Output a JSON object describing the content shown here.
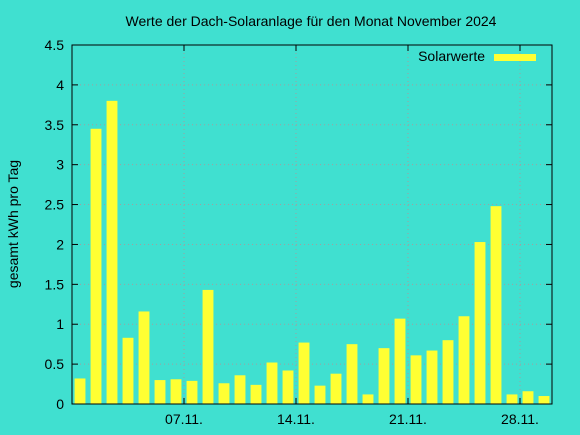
{
  "chart_data": {
    "type": "bar",
    "title": "Werte der Dach-Solaranlage für den Monat November 2024",
    "xlabel": "",
    "ylabel": "gesamt kWh pro Tag",
    "ylim": [
      0,
      4.5
    ],
    "yticks": [
      "0",
      "0.5",
      "1",
      "1.5",
      "2",
      "2.5",
      "3",
      "3.5",
      "4",
      "4.5"
    ],
    "xlim": [
      0,
      30
    ],
    "xticks": [
      {
        "day": 7,
        "label": "07.11."
      },
      {
        "day": 14,
        "label": "14.11."
      },
      {
        "day": 21,
        "label": "21.11."
      },
      {
        "day": 28,
        "label": "28.11."
      }
    ],
    "grid": true,
    "legend_position": "top-right",
    "colors": {
      "background": "#40e0d0",
      "bar": "#ffff33",
      "grid": "#a0a0a0"
    },
    "series": [
      {
        "name": "Solarwerte",
        "x": [
          1,
          2,
          3,
          4,
          5,
          6,
          7,
          8,
          9,
          10,
          11,
          12,
          13,
          14,
          15,
          16,
          17,
          18,
          19,
          20,
          21,
          22,
          23,
          24,
          25,
          26,
          27,
          28,
          29,
          30
        ],
        "values": [
          0.32,
          3.45,
          3.8,
          0.83,
          1.16,
          0.3,
          0.31,
          0.29,
          1.43,
          0.26,
          0.36,
          0.24,
          0.52,
          0.42,
          0.77,
          0.23,
          0.38,
          0.75,
          0.12,
          0.7,
          1.07,
          0.61,
          0.67,
          0.8,
          1.1,
          2.03,
          2.48,
          0.12,
          0.16,
          0.1
        ]
      }
    ]
  }
}
